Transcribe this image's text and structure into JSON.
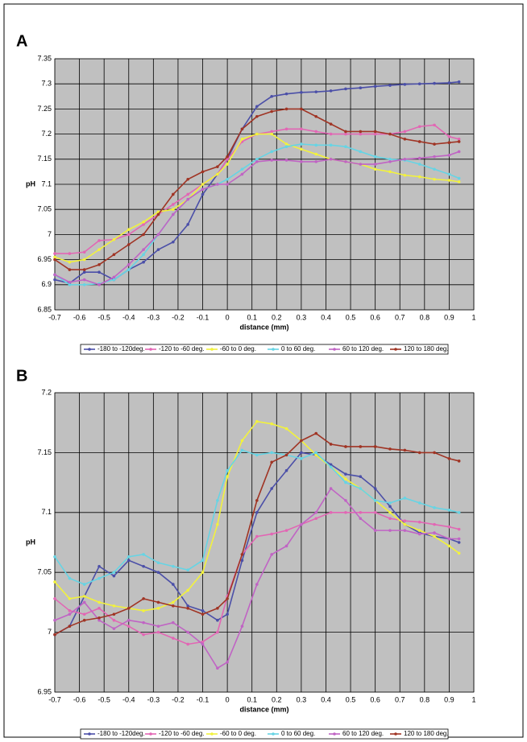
{
  "chart_data": [
    {
      "type": "line",
      "panel_label": "A",
      "xlabel": "distance (mm)",
      "ylabel": "pH",
      "grid": true,
      "background": "#c0c0c0",
      "x": [
        -0.7,
        -0.64,
        -0.58,
        -0.52,
        -0.46,
        -0.4,
        -0.34,
        -0.28,
        -0.22,
        -0.16,
        -0.1,
        -0.04,
        0,
        0.06,
        0.12,
        0.18,
        0.24,
        0.3,
        0.36,
        0.42,
        0.48,
        0.54,
        0.6,
        0.66,
        0.72,
        0.78,
        0.84,
        0.9,
        0.94
      ],
      "xlim": [
        -0.7,
        1
      ],
      "xticks": [
        -0.7,
        -0.6,
        -0.5,
        -0.4,
        -0.3,
        -0.2,
        -0.1,
        0,
        0.1,
        0.2,
        0.3,
        0.4,
        0.5,
        0.6,
        0.7,
        0.8,
        0.9,
        1
      ],
      "ylim": [
        6.85,
        7.35
      ],
      "yticks": [
        6.85,
        6.9,
        6.95,
        7,
        7.05,
        7.1,
        7.15,
        7.2,
        7.25,
        7.3,
        7.35
      ],
      "series": [
        {
          "name": "-180 to -120deg.",
          "color": "#4b4fa8",
          "values": [
            6.91,
            6.903,
            6.925,
            6.925,
            6.91,
            6.93,
            6.945,
            6.97,
            6.985,
            7.02,
            7.08,
            7.12,
            7.15,
            7.21,
            7.255,
            7.275,
            7.28,
            7.283,
            7.284,
            7.286,
            7.29,
            7.292,
            7.295,
            7.297,
            7.299,
            7.3,
            7.301,
            7.302,
            7.304
          ]
        },
        {
          "name": "-120 to -60 deg.",
          "color": "#e266b4",
          "values": [
            6.962,
            6.962,
            6.965,
            6.988,
            6.99,
            7.0,
            7.02,
            7.04,
            7.06,
            7.08,
            7.1,
            7.12,
            7.15,
            7.185,
            7.2,
            7.205,
            7.21,
            7.21,
            7.205,
            7.2,
            7.2,
            7.2,
            7.2,
            7.2,
            7.205,
            7.215,
            7.218,
            7.195,
            7.19
          ]
        },
        {
          "name": "-60 to 0 deg.",
          "color": "#f2f23c",
          "values": [
            6.955,
            6.945,
            6.95,
            6.97,
            6.99,
            7.01,
            7.025,
            7.045,
            7.05,
            7.07,
            7.1,
            7.12,
            7.14,
            7.19,
            7.2,
            7.2,
            7.18,
            7.17,
            7.16,
            7.15,
            7.145,
            7.14,
            7.13,
            7.125,
            7.118,
            7.115,
            7.11,
            7.108,
            7.105
          ]
        },
        {
          "name": "0 to 60 deg.",
          "color": "#66d4e4",
          "values": [
            6.92,
            6.9,
            6.9,
            6.902,
            6.91,
            6.93,
            6.96,
            7.0,
            7.04,
            7.07,
            7.09,
            7.1,
            7.11,
            7.13,
            7.15,
            7.165,
            7.175,
            7.18,
            7.178,
            7.178,
            7.175,
            7.165,
            7.155,
            7.15,
            7.148,
            7.14,
            7.13,
            7.12,
            7.112
          ]
        },
        {
          "name": "60 to 120 deg.",
          "color": "#c064c4",
          "values": [
            6.92,
            6.905,
            6.91,
            6.9,
            6.915,
            6.94,
            6.97,
            7.0,
            7.04,
            7.07,
            7.09,
            7.1,
            7.1,
            7.12,
            7.145,
            7.148,
            7.148,
            7.145,
            7.145,
            7.15,
            7.145,
            7.14,
            7.14,
            7.145,
            7.15,
            7.152,
            7.155,
            7.158,
            7.165
          ]
        },
        {
          "name": "120 to 180 deg.",
          "color": "#a03424",
          "values": [
            6.95,
            6.93,
            6.93,
            6.94,
            6.96,
            6.98,
            7.0,
            7.04,
            7.08,
            7.11,
            7.125,
            7.135,
            7.155,
            7.21,
            7.235,
            7.245,
            7.25,
            7.25,
            7.235,
            7.22,
            7.205,
            7.205,
            7.205,
            7.2,
            7.19,
            7.185,
            7.18,
            7.183,
            7.185
          ]
        }
      ]
    },
    {
      "type": "line",
      "panel_label": "B",
      "xlabel": "distance (mm)",
      "ylabel": "pH",
      "grid": true,
      "background": "#c0c0c0",
      "x": [
        -0.7,
        -0.64,
        -0.58,
        -0.52,
        -0.46,
        -0.4,
        -0.34,
        -0.28,
        -0.22,
        -0.16,
        -0.1,
        -0.04,
        0,
        0.06,
        0.12,
        0.18,
        0.24,
        0.3,
        0.36,
        0.42,
        0.48,
        0.54,
        0.6,
        0.66,
        0.72,
        0.78,
        0.84,
        0.9,
        0.94
      ],
      "xlim": [
        -0.7,
        1
      ],
      "xticks": [
        -0.7,
        -0.6,
        -0.5,
        -0.4,
        -0.3,
        -0.2,
        -0.1,
        0,
        0.1,
        0.2,
        0.3,
        0.4,
        0.5,
        0.6,
        0.7,
        0.8,
        0.9,
        1
      ],
      "ylim": [
        6.95,
        7.2
      ],
      "yticks": [
        6.95,
        7,
        7.05,
        7.1,
        7.15,
        7.2
      ],
      "series": [
        {
          "name": "-180 to -120deg.",
          "color": "#4b4fa8",
          "values": [
            6.998,
            7.005,
            7.03,
            7.055,
            7.047,
            7.06,
            7.055,
            7.05,
            7.04,
            7.022,
            7.018,
            7.01,
            7.015,
            7.06,
            7.1,
            7.12,
            7.135,
            7.15,
            7.148,
            7.14,
            7.132,
            7.13,
            7.12,
            7.105,
            7.09,
            7.083,
            7.08,
            7.078,
            7.075
          ]
        },
        {
          "name": "-120 to -60 deg.",
          "color": "#e266b4",
          "values": [
            7.028,
            7.018,
            7.015,
            7.02,
            7.01,
            7.005,
            6.998,
            7.0,
            6.995,
            6.99,
            6.992,
            7.0,
            7.03,
            7.065,
            7.08,
            7.082,
            7.085,
            7.09,
            7.095,
            7.1,
            7.1,
            7.1,
            7.1,
            7.095,
            7.093,
            7.092,
            7.09,
            7.088,
            7.086
          ]
        },
        {
          "name": "-60 to 0 deg.",
          "color": "#f2f23c",
          "values": [
            7.042,
            7.028,
            7.03,
            7.025,
            7.022,
            7.02,
            7.018,
            7.02,
            7.025,
            7.035,
            7.05,
            7.09,
            7.13,
            7.16,
            7.176,
            7.174,
            7.17,
            7.16,
            7.148,
            7.138,
            7.128,
            7.12,
            7.11,
            7.1,
            7.09,
            7.085,
            7.08,
            7.072,
            7.066
          ]
        },
        {
          "name": "0 to 60 deg.",
          "color": "#66d4e4",
          "values": [
            7.063,
            7.045,
            7.04,
            7.045,
            7.05,
            7.063,
            7.065,
            7.058,
            7.055,
            7.052,
            7.06,
            7.11,
            7.135,
            7.152,
            7.148,
            7.15,
            7.148,
            7.145,
            7.15,
            7.138,
            7.125,
            7.12,
            7.11,
            7.108,
            7.112,
            7.108,
            7.104,
            7.102,
            7.1
          ]
        },
        {
          "name": "60 to 120 deg.",
          "color": "#c064c4",
          "values": [
            7.01,
            7.015,
            7.025,
            7.01,
            7.003,
            7.01,
            7.008,
            7.005,
            7.008,
            7.0,
            6.99,
            6.97,
            6.975,
            7.005,
            7.04,
            7.065,
            7.072,
            7.09,
            7.1,
            7.12,
            7.11,
            7.095,
            7.085,
            7.085,
            7.085,
            7.082,
            7.083,
            7.078,
            7.078
          ]
        },
        {
          "name": "120 to 180 deg.",
          "color": "#a03424",
          "values": [
            6.998,
            7.005,
            7.01,
            7.012,
            7.015,
            7.02,
            7.028,
            7.025,
            7.022,
            7.02,
            7.015,
            7.02,
            7.028,
            7.065,
            7.11,
            7.142,
            7.148,
            7.16,
            7.166,
            7.157,
            7.155,
            7.155,
            7.155,
            7.153,
            7.152,
            7.15,
            7.15,
            7.145,
            7.143
          ]
        }
      ]
    }
  ]
}
